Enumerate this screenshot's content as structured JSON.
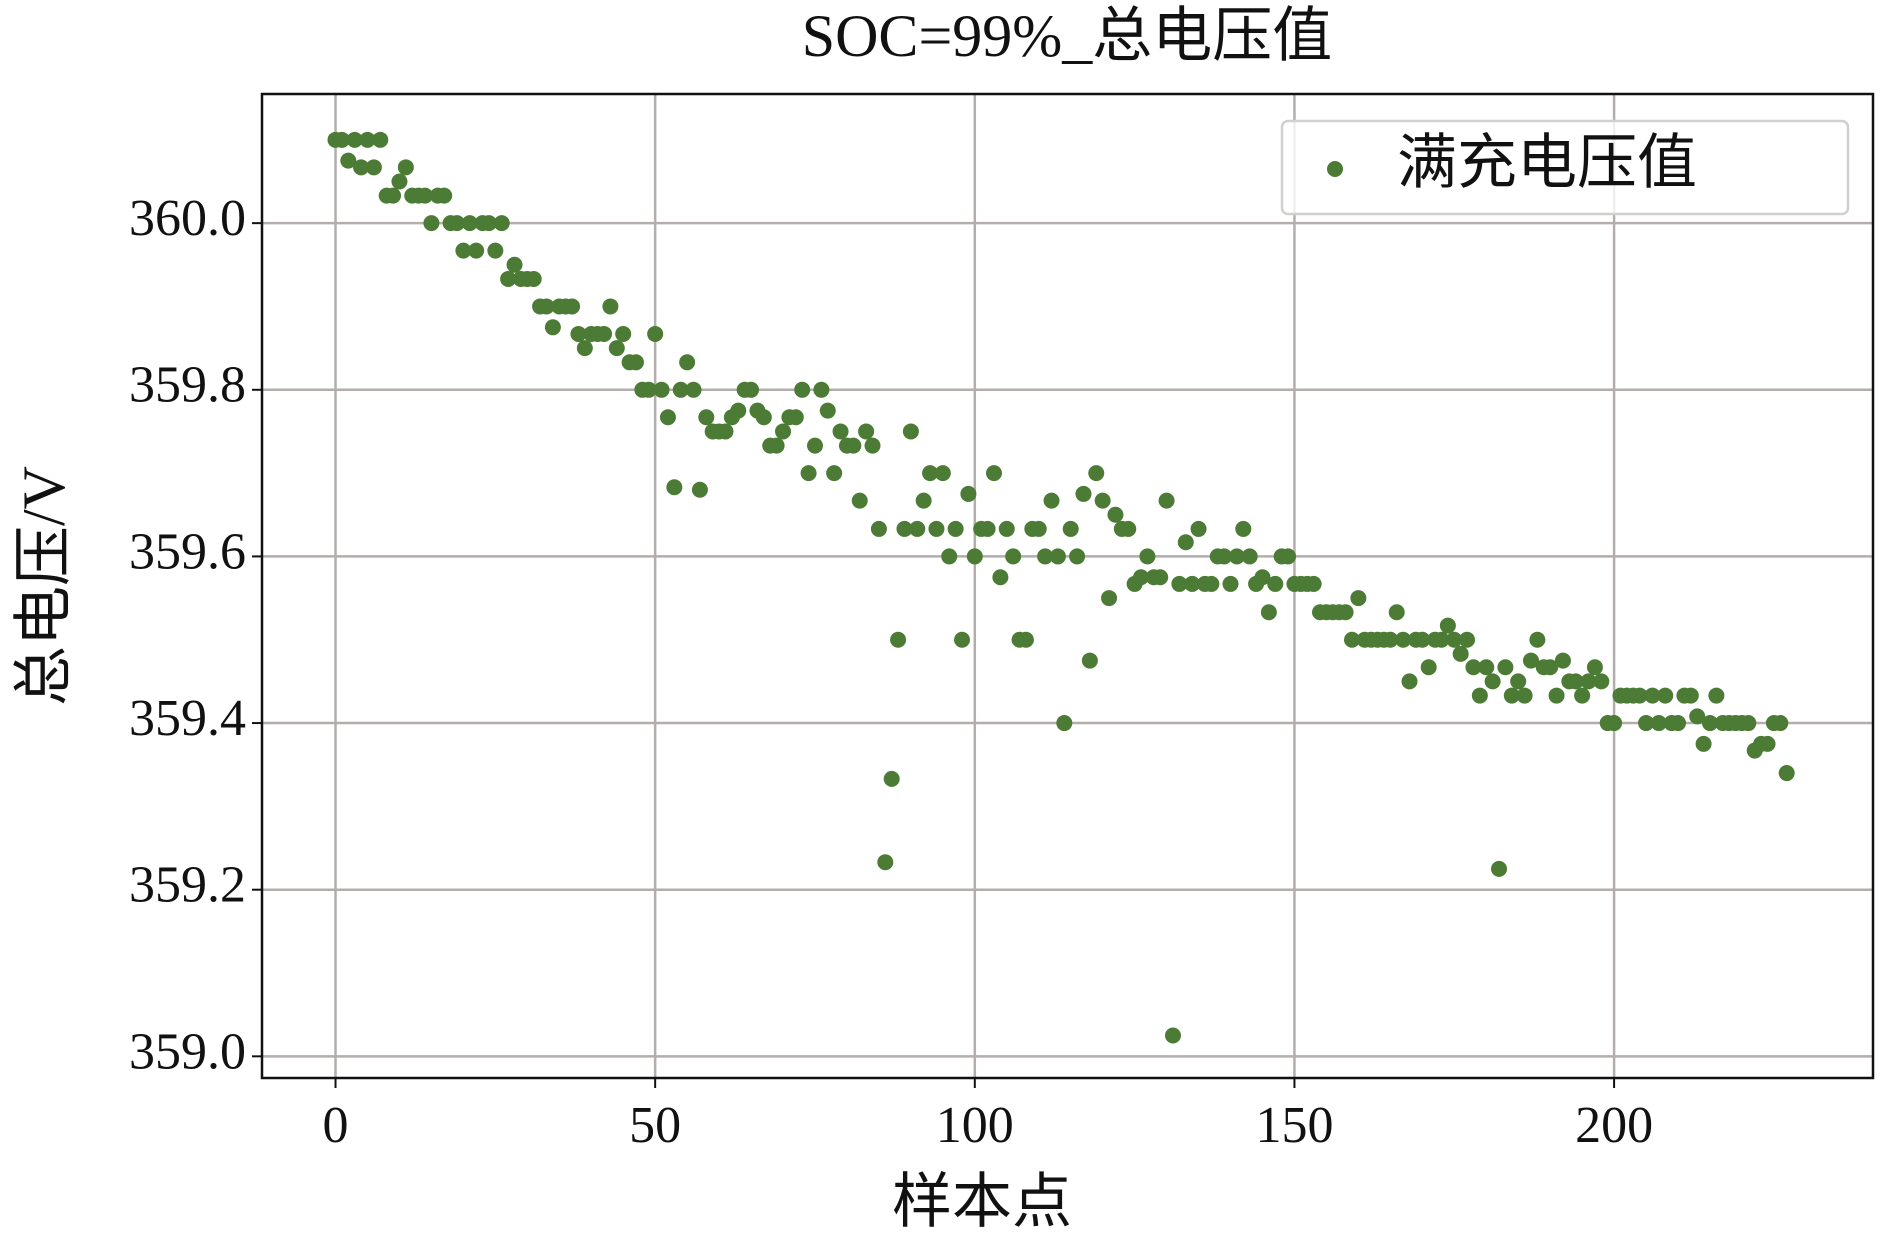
{
  "chart_data": {
    "type": "scatter",
    "title": "SOC=99%_总电压值",
    "xlabel": "样本点",
    "ylabel": "总电压/V",
    "xlim": [
      -11.5,
      240.5
    ],
    "ylim": [
      358.974,
      360.155
    ],
    "xticks": [
      0,
      50,
      100,
      150,
      200
    ],
    "yticks": [
      {
        "value": 359,
        "label": "359.0"
      },
      359.2,
      359.4,
      359.6,
      359.8,
      {
        "value": 360,
        "label": "360.0"
      }
    ],
    "grid": true,
    "legend": "upper right",
    "series": [
      {
        "name": "满充电压值",
        "color": "#4b7b35",
        "x": [
          0,
          1,
          2,
          3,
          4,
          5,
          6,
          7,
          8,
          9,
          10,
          11,
          12,
          13,
          14,
          15,
          16,
          17,
          18,
          19,
          20,
          21,
          22,
          23,
          24,
          25,
          26,
          27,
          28,
          29,
          30,
          31,
          32,
          33,
          34,
          35,
          36,
          37,
          38,
          39,
          40,
          41,
          42,
          43,
          44,
          45,
          46,
          47,
          48,
          49,
          50,
          51,
          52,
          53,
          54,
          55,
          56,
          57,
          58,
          59,
          60,
          61,
          62,
          63,
          64,
          65,
          66,
          67,
          68,
          69,
          70,
          71,
          72,
          73,
          74,
          75,
          76,
          77,
          78,
          79,
          80,
          81,
          82,
          83,
          84,
          85,
          86,
          87,
          88,
          89,
          90,
          91,
          92,
          93,
          94,
          95,
          96,
          97,
          98,
          99,
          100,
          101,
          102,
          103,
          104,
          105,
          106,
          107,
          108,
          109,
          110,
          111,
          112,
          113,
          114,
          115,
          116,
          117,
          118,
          119,
          120,
          121,
          122,
          123,
          124,
          125,
          126,
          127,
          128,
          129,
          130,
          131,
          132,
          133,
          134,
          135,
          136,
          137,
          138,
          139,
          140,
          141,
          142,
          143,
          144,
          145,
          146,
          147,
          148,
          149,
          150,
          151,
          152,
          153,
          154,
          155,
          156,
          157,
          158,
          159,
          160,
          161,
          162,
          163,
          164,
          165,
          166,
          167,
          168,
          169,
          170,
          171,
          172,
          173,
          174,
          175,
          176,
          177,
          178,
          179,
          180,
          181,
          182,
          183,
          184,
          185,
          186,
          187,
          188,
          189,
          190,
          191,
          192,
          193,
          194,
          195,
          196,
          197,
          198,
          199,
          200,
          201,
          202,
          203,
          204,
          205,
          206,
          207,
          208,
          209,
          210,
          211,
          212,
          213,
          214,
          215,
          216,
          217,
          218,
          219,
          220,
          221,
          222,
          223,
          224,
          225,
          226,
          227
        ],
        "values": [
          360.1,
          360.1,
          360.075,
          360.1,
          360.067,
          360.1,
          360.067,
          360.1,
          360.033,
          360.033,
          360.05,
          360.067,
          360.033,
          360.033,
          360.033,
          360.0,
          360.033,
          360.033,
          360.0,
          360.0,
          359.967,
          360.0,
          359.967,
          360.0,
          360.0,
          359.967,
          360.0,
          359.933,
          359.95,
          359.933,
          359.933,
          359.933,
          359.9,
          359.9,
          359.875,
          359.9,
          359.9,
          359.9,
          359.867,
          359.85,
          359.867,
          359.867,
          359.867,
          359.9,
          359.85,
          359.867,
          359.833,
          359.833,
          359.8,
          359.8,
          359.867,
          359.8,
          359.767,
          359.683,
          359.8,
          359.833,
          359.8,
          359.68,
          359.767,
          359.75,
          359.75,
          359.75,
          359.767,
          359.775,
          359.8,
          359.8,
          359.775,
          359.767,
          359.733,
          359.733,
          359.75,
          359.767,
          359.767,
          359.8,
          359.7,
          359.733,
          359.8,
          359.775,
          359.7,
          359.75,
          359.733,
          359.733,
          359.667,
          359.75,
          359.733,
          359.633,
          359.233,
          359.333,
          359.5,
          359.633,
          359.75,
          359.633,
          359.667,
          359.7,
          359.633,
          359.7,
          359.6,
          359.633,
          359.5,
          359.675,
          359.6,
          359.633,
          359.633,
          359.7,
          359.575,
          359.633,
          359.6,
          359.5,
          359.5,
          359.633,
          359.633,
          359.6,
          359.667,
          359.6,
          359.4,
          359.633,
          359.6,
          359.675,
          359.475,
          359.7,
          359.667,
          359.55,
          359.65,
          359.633,
          359.633,
          359.567,
          359.575,
          359.6,
          359.575,
          359.575,
          359.667,
          359.025,
          359.567,
          359.617,
          359.567,
          359.633,
          359.567,
          359.567,
          359.6,
          359.6,
          359.567,
          359.6,
          359.633,
          359.6,
          359.567,
          359.575,
          359.533,
          359.567,
          359.6,
          359.6,
          359.567,
          359.567,
          359.567,
          359.567,
          359.533,
          359.533,
          359.533,
          359.533,
          359.533,
          359.5,
          359.55,
          359.5,
          359.5,
          359.5,
          359.5,
          359.5,
          359.533,
          359.5,
          359.45,
          359.5,
          359.5,
          359.467,
          359.5,
          359.5,
          359.517,
          359.5,
          359.483,
          359.5,
          359.467,
          359.433,
          359.467,
          359.45,
          359.225,
          359.467,
          359.433,
          359.45,
          359.433,
          359.475,
          359.5,
          359.467,
          359.467,
          359.433,
          359.475,
          359.45,
          359.45,
          359.433,
          359.45,
          359.467,
          359.45,
          359.4,
          359.4,
          359.433,
          359.433,
          359.433,
          359.433,
          359.4,
          359.433,
          359.4,
          359.433,
          359.4,
          359.4,
          359.433,
          359.433,
          359.408,
          359.375,
          359.4,
          359.433,
          359.4,
          359.4,
          359.4,
          359.4,
          359.4,
          359.367,
          359.375,
          359.375,
          359.4,
          359.4,
          359.34
        ]
      }
    ]
  }
}
